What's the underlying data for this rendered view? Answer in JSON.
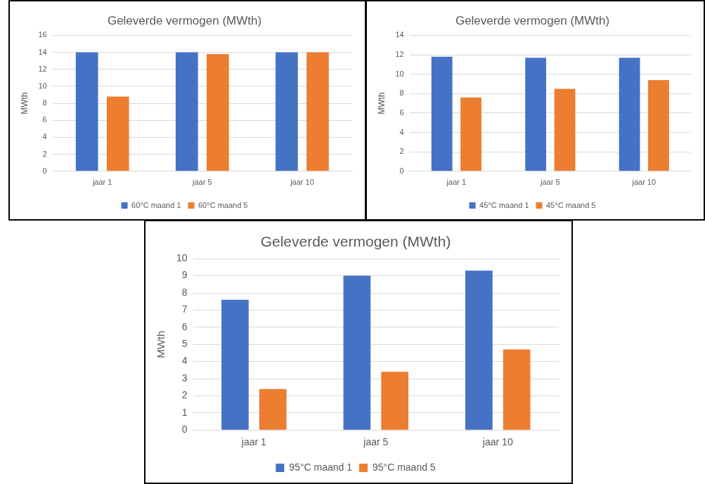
{
  "chart_data": [
    {
      "type": "bar",
      "title": "Geleverde vermogen (MWth)",
      "ylabel": "MWth",
      "categories": [
        "jaar 1",
        "jaar 5",
        "jaar 10"
      ],
      "series": [
        {
          "name": "60°C maand 1",
          "color": "#4472c4",
          "values": [
            14,
            14,
            14
          ]
        },
        {
          "name": "60°C maand 5",
          "color": "#ed7d31",
          "values": [
            8.8,
            13.8,
            14
          ]
        }
      ],
      "ylim": [
        0,
        16
      ],
      "yticks": [
        0,
        2,
        4,
        6,
        8,
        10,
        12,
        14,
        16
      ],
      "grid": "y",
      "legend": "bottom"
    },
    {
      "type": "bar",
      "title": "Geleverde vermogen (MWth)",
      "ylabel": "MWth",
      "categories": [
        "jaar 1",
        "jaar 5",
        "jaar 10"
      ],
      "series": [
        {
          "name": "45°C maand 1",
          "color": "#4472c4",
          "values": [
            11.8,
            11.7,
            11.7
          ]
        },
        {
          "name": "45°C maand 5",
          "color": "#ed7d31",
          "values": [
            7.6,
            8.5,
            9.4
          ]
        }
      ],
      "ylim": [
        0,
        14
      ],
      "yticks": [
        0,
        2,
        4,
        6,
        8,
        10,
        12,
        14
      ],
      "grid": "y",
      "legend": "bottom"
    },
    {
      "type": "bar",
      "title": "Geleverde vermogen (MWth)",
      "ylabel": "MWth",
      "categories": [
        "jaar 1",
        "jaar 5",
        "jaar 10"
      ],
      "series": [
        {
          "name": "95°C maand 1",
          "color": "#4472c4",
          "values": [
            7.6,
            9,
            9.3
          ]
        },
        {
          "name": "95°C maand 5",
          "color": "#ed7d31",
          "values": [
            2.4,
            3.4,
            4.7
          ]
        }
      ],
      "ylim": [
        0,
        10
      ],
      "yticks": [
        0,
        1,
        2,
        3,
        4,
        5,
        6,
        7,
        8,
        9,
        10
      ],
      "grid": "y",
      "legend": "bottom"
    }
  ]
}
